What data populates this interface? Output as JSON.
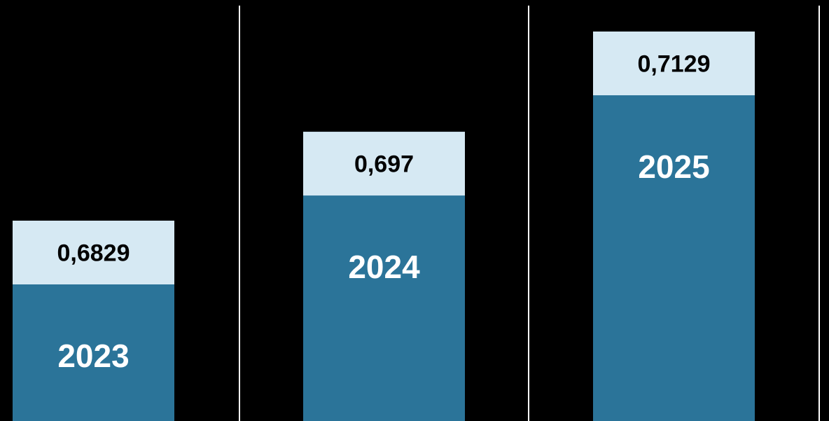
{
  "chart_data": {
    "type": "bar",
    "categories": [
      "2023",
      "2024",
      "2025"
    ],
    "values": [
      0.6829,
      0.697,
      0.7129
    ],
    "value_labels": [
      "0,6829",
      "0,697",
      "0,7129"
    ],
    "title": "",
    "xlabel": "",
    "ylabel": "",
    "grid": false,
    "legend": "none",
    "colors": {
      "background": "#000000",
      "bar_body": "#2b7499",
      "bar_cap": "#d6e9f3",
      "value_text": "#000000",
      "category_text": "#ffffff",
      "separator": "#ffffff"
    }
  }
}
